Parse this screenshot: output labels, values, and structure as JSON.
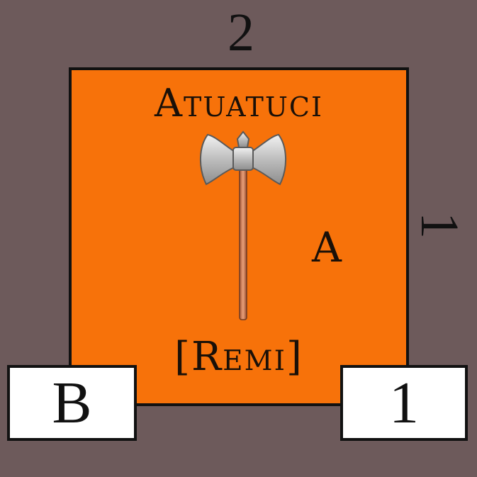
{
  "top_value": "2",
  "side_value": "1",
  "counter": {
    "tribe": "Atuatuci",
    "class_letter": "A",
    "patron": "[Remi]",
    "icon": "battle-axe-icon",
    "color": "#f7720a"
  },
  "left_box": "B",
  "right_box": "1"
}
